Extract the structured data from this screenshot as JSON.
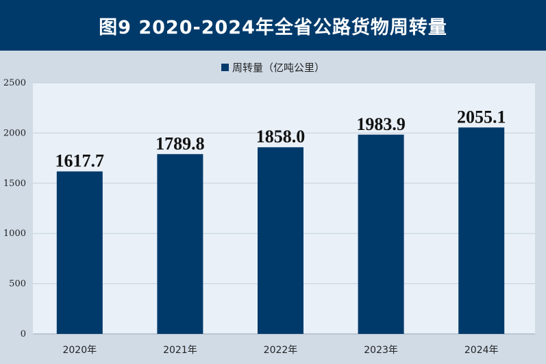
{
  "title": "图9  2020-2024年全省公路货物周转量",
  "colors": {
    "header_bg": "#003a6b",
    "bar": "#003a6b",
    "plot_bg": "#e9f0f7",
    "page_bg": "#d0dbe6"
  },
  "chart_data": {
    "type": "bar",
    "categories": [
      "2020年",
      "2021年",
      "2022年",
      "2023年",
      "2024年"
    ],
    "series": [
      {
        "name": "周转量（亿吨公里）",
        "values": [
          1617.7,
          1789.8,
          1858.0,
          1983.9,
          2055.1
        ],
        "labels": [
          "1617.7",
          "1789.8",
          "1858.0",
          "1983.9",
          "2055.1"
        ]
      }
    ],
    "ylim": [
      0,
      2500
    ],
    "yticks": [
      0,
      500,
      1000,
      1500,
      2000,
      2500
    ],
    "grid": true,
    "legend": "top-center"
  }
}
